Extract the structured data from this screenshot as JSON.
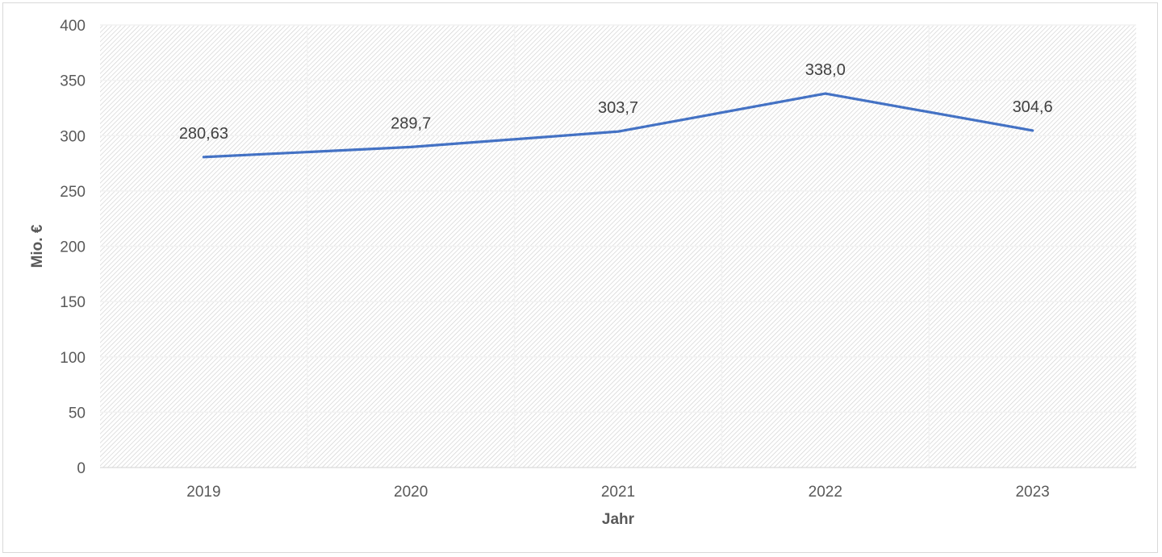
{
  "chart_data": {
    "type": "line",
    "categories": [
      "2019",
      "2020",
      "2021",
      "2022",
      "2023"
    ],
    "series": [
      {
        "values": [
          280.63,
          289.7,
          303.7,
          338.0,
          304.6
        ],
        "data_labels": [
          "280,63",
          "289,7",
          "303,7",
          "338,0",
          "304,6"
        ]
      }
    ],
    "xlabel": "Jahr",
    "ylabel": "Mio. €",
    "ylim": [
      0,
      400
    ],
    "yticks": [
      0,
      50,
      100,
      150,
      200,
      250,
      300,
      350,
      400
    ],
    "grid": true,
    "plot_pattern": "diagonal-hatch",
    "legend": "none",
    "colors": {
      "line": "#4472c4",
      "gridline": "#f2f2f2",
      "hatch": "#d0d0d0",
      "axis": "#d9d9d9",
      "text": "#595959"
    }
  }
}
